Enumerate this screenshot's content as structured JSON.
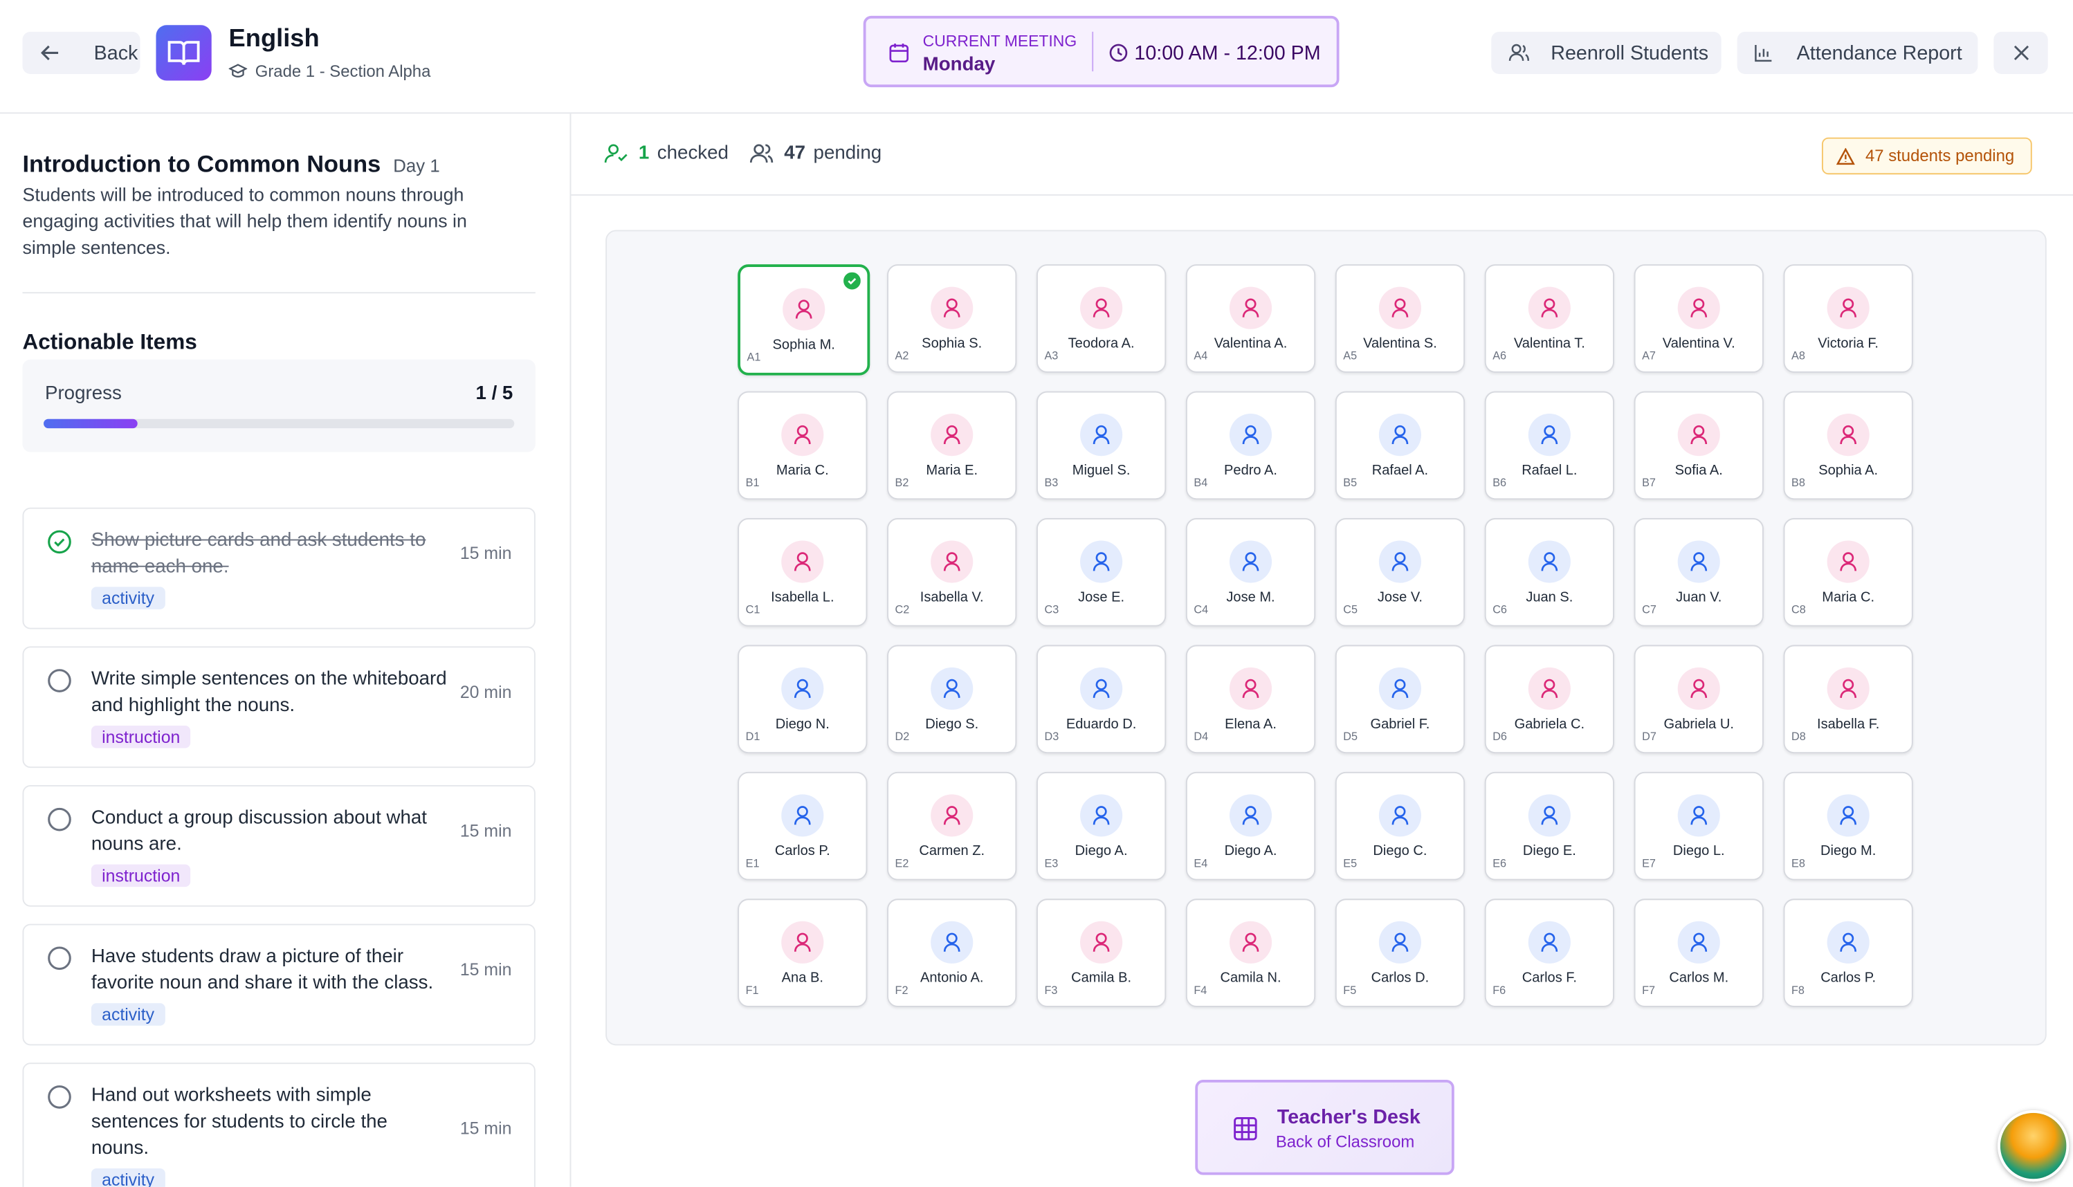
{
  "header": {
    "back": "Back",
    "subject": "English",
    "section": "Grade 1 - Section Alpha",
    "meeting_label": "CURRENT MEETING",
    "meeting_day": "Monday",
    "meeting_time": "10:00 AM - 12:00 PM",
    "reenroll": "Reenroll Students",
    "attendance_report": "Attendance Report"
  },
  "lesson": {
    "title": "Introduction to Common Nouns",
    "day": "Day 1",
    "description": "Students will be introduced to common nouns through engaging activities that will help them identify nouns in simple sentences."
  },
  "actionable": {
    "title": "Actionable Items",
    "progress_label": "Progress",
    "completed": 1,
    "separator": "/",
    "total": 5,
    "items": [
      {
        "text": "Show picture cards and ask students to name each one.",
        "duration": "15 min",
        "tag": "activity",
        "done": true
      },
      {
        "text": "Write simple sentences on the whiteboard and highlight the nouns.",
        "duration": "20 min",
        "tag": "instruction",
        "done": false
      },
      {
        "text": "Conduct a group discussion about what nouns are.",
        "duration": "15 min",
        "tag": "instruction",
        "done": false
      },
      {
        "text": "Have students draw a picture of their favorite noun and share it with the class.",
        "duration": "15 min",
        "tag": "activity",
        "done": false
      },
      {
        "text": "Hand out worksheets with simple sentences for students to circle the nouns.",
        "duration": "15 min",
        "tag": "activity",
        "done": false
      }
    ]
  },
  "status": {
    "checked_count": "1",
    "checked_label": "checked",
    "pending_count": "47",
    "pending_label": "pending",
    "pending_badge": "47 students pending"
  },
  "seats": [
    [
      {
        "label": "A1",
        "name": "Sophia M.",
        "color": "#db2777",
        "checked": true
      },
      {
        "label": "A2",
        "name": "Sophia S.",
        "color": "#db2777"
      },
      {
        "label": "A3",
        "name": "Teodora A.",
        "color": "#db2777"
      },
      {
        "label": "A4",
        "name": "Valentina A.",
        "color": "#db2777"
      },
      {
        "label": "A5",
        "name": "Valentina S.",
        "color": "#db2777"
      },
      {
        "label": "A6",
        "name": "Valentina T.",
        "color": "#db2777"
      },
      {
        "label": "A7",
        "name": "Valentina V.",
        "color": "#db2777"
      },
      {
        "label": "A8",
        "name": "Victoria F.",
        "color": "#db2777"
      }
    ],
    [
      {
        "label": "B1",
        "name": "Maria C.",
        "color": "#db2777"
      },
      {
        "label": "B2",
        "name": "Maria E.",
        "color": "#db2777"
      },
      {
        "label": "B3",
        "name": "Miguel S.",
        "color": "#2563eb"
      },
      {
        "label": "B4",
        "name": "Pedro A.",
        "color": "#2563eb"
      },
      {
        "label": "B5",
        "name": "Rafael A.",
        "color": "#2563eb"
      },
      {
        "label": "B6",
        "name": "Rafael L.",
        "color": "#2563eb"
      },
      {
        "label": "B7",
        "name": "Sofia A.",
        "color": "#db2777"
      },
      {
        "label": "B8",
        "name": "Sophia A.",
        "color": "#db2777"
      }
    ],
    [
      {
        "label": "C1",
        "name": "Isabella L.",
        "color": "#db2777"
      },
      {
        "label": "C2",
        "name": "Isabella V.",
        "color": "#db2777"
      },
      {
        "label": "C3",
        "name": "Jose E.",
        "color": "#2563eb"
      },
      {
        "label": "C4",
        "name": "Jose M.",
        "color": "#2563eb"
      },
      {
        "label": "C5",
        "name": "Jose V.",
        "color": "#2563eb"
      },
      {
        "label": "C6",
        "name": "Juan S.",
        "color": "#2563eb"
      },
      {
        "label": "C7",
        "name": "Juan V.",
        "color": "#2563eb"
      },
      {
        "label": "C8",
        "name": "Maria C.",
        "color": "#db2777"
      }
    ],
    [
      {
        "label": "D1",
        "name": "Diego N.",
        "color": "#2563eb"
      },
      {
        "label": "D2",
        "name": "Diego S.",
        "color": "#2563eb"
      },
      {
        "label": "D3",
        "name": "Eduardo D.",
        "color": "#2563eb"
      },
      {
        "label": "D4",
        "name": "Elena A.",
        "color": "#db2777"
      },
      {
        "label": "D5",
        "name": "Gabriel F.",
        "color": "#2563eb"
      },
      {
        "label": "D6",
        "name": "Gabriela C.",
        "color": "#db2777"
      },
      {
        "label": "D7",
        "name": "Gabriela U.",
        "color": "#db2777"
      },
      {
        "label": "D8",
        "name": "Isabella F.",
        "color": "#db2777"
      }
    ],
    [
      {
        "label": "E1",
        "name": "Carlos P.",
        "color": "#2563eb"
      },
      {
        "label": "E2",
        "name": "Carmen Z.",
        "color": "#db2777"
      },
      {
        "label": "E3",
        "name": "Diego A.",
        "color": "#2563eb"
      },
      {
        "label": "E4",
        "name": "Diego A.",
        "color": "#2563eb"
      },
      {
        "label": "E5",
        "name": "Diego C.",
        "color": "#2563eb"
      },
      {
        "label": "E6",
        "name": "Diego E.",
        "color": "#2563eb"
      },
      {
        "label": "E7",
        "name": "Diego L.",
        "color": "#2563eb"
      },
      {
        "label": "E8",
        "name": "Diego M.",
        "color": "#2563eb"
      }
    ],
    [
      {
        "label": "F1",
        "name": "Ana B.",
        "color": "#db2777"
      },
      {
        "label": "F2",
        "name": "Antonio A.",
        "color": "#2563eb"
      },
      {
        "label": "F3",
        "name": "Camila B.",
        "color": "#db2777"
      },
      {
        "label": "F4",
        "name": "Camila N.",
        "color": "#db2777"
      },
      {
        "label": "F5",
        "name": "Carlos D.",
        "color": "#2563eb"
      },
      {
        "label": "F6",
        "name": "Carlos F.",
        "color": "#2563eb"
      },
      {
        "label": "F7",
        "name": "Carlos M.",
        "color": "#2563eb"
      },
      {
        "label": "F8",
        "name": "Carlos P.",
        "color": "#2563eb"
      }
    ]
  ],
  "teacher_desk": {
    "title": "Teacher's Desk",
    "subtitle": "Back of Classroom"
  }
}
